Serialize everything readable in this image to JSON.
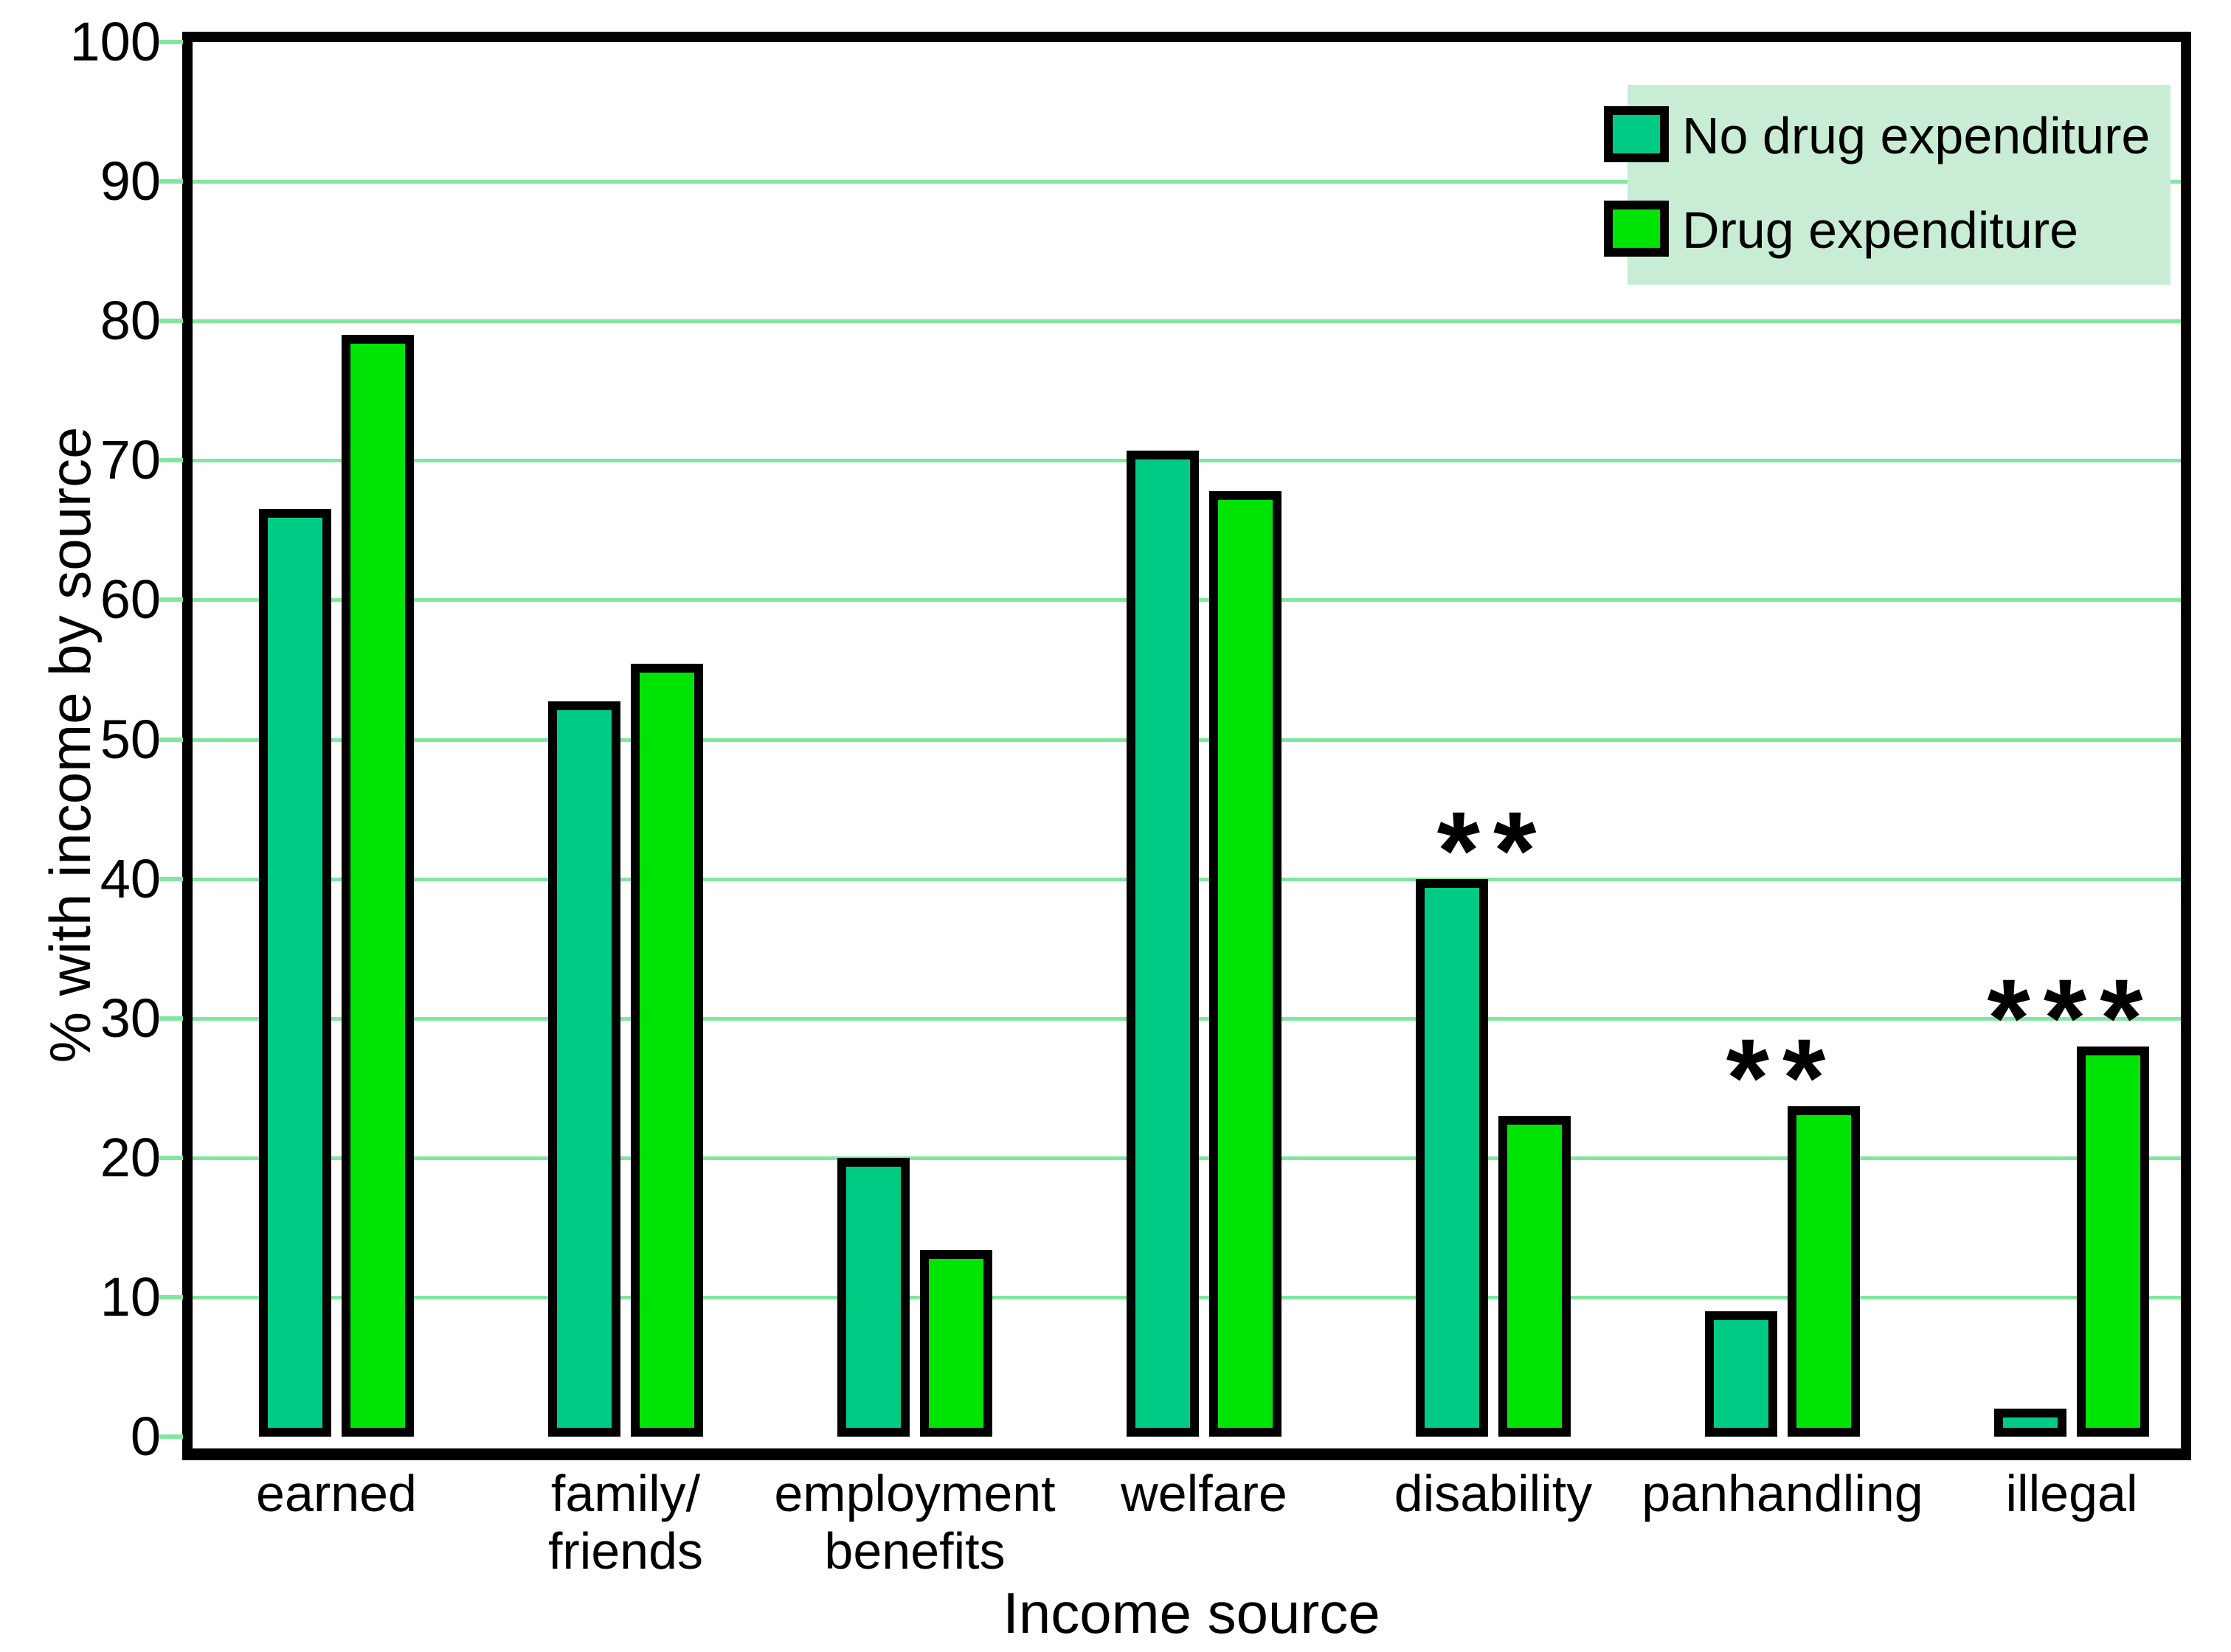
{
  "chart_data": {
    "type": "bar",
    "title": "",
    "xlabel": "Income source",
    "ylabel": "% with income by source",
    "categories": [
      "earned",
      "family/\nfriends",
      "employment\nbenefits",
      "welfare",
      "disability",
      "panhandling",
      "illegal"
    ],
    "series": [
      {
        "name": "No drug expenditure",
        "color": "#00cb85",
        "values": [
          66.5,
          52.7,
          20,
          70.7,
          40,
          9,
          2
        ]
      },
      {
        "name": "Drug expenditure",
        "color": "#00e405",
        "values": [
          79,
          55.4,
          13.4,
          67.8,
          23,
          23.7,
          28
        ]
      }
    ],
    "annotations": [
      {
        "category": "disability",
        "category_index": 4,
        "series_index": 0,
        "text": "**"
      },
      {
        "category": "panhandling",
        "category_index": 5,
        "series_index": 1,
        "text": "**"
      },
      {
        "category": "illegal",
        "category_index": 6,
        "series_index": 1,
        "text": "***"
      }
    ],
    "ylim": [
      0,
      100
    ],
    "yticks": [
      0,
      10,
      20,
      30,
      40,
      50,
      60,
      70,
      80,
      90,
      100
    ],
    "grid": true,
    "legend_position": "top-right"
  },
  "colors": {
    "no_drug_bar": "#00cb85",
    "drug_bar": "#00e405",
    "gridline": "#82e6a1",
    "legend_background": "#c8ecd4",
    "bar_outline": "#000000",
    "frame": "#000000",
    "background": "#ffffff"
  }
}
